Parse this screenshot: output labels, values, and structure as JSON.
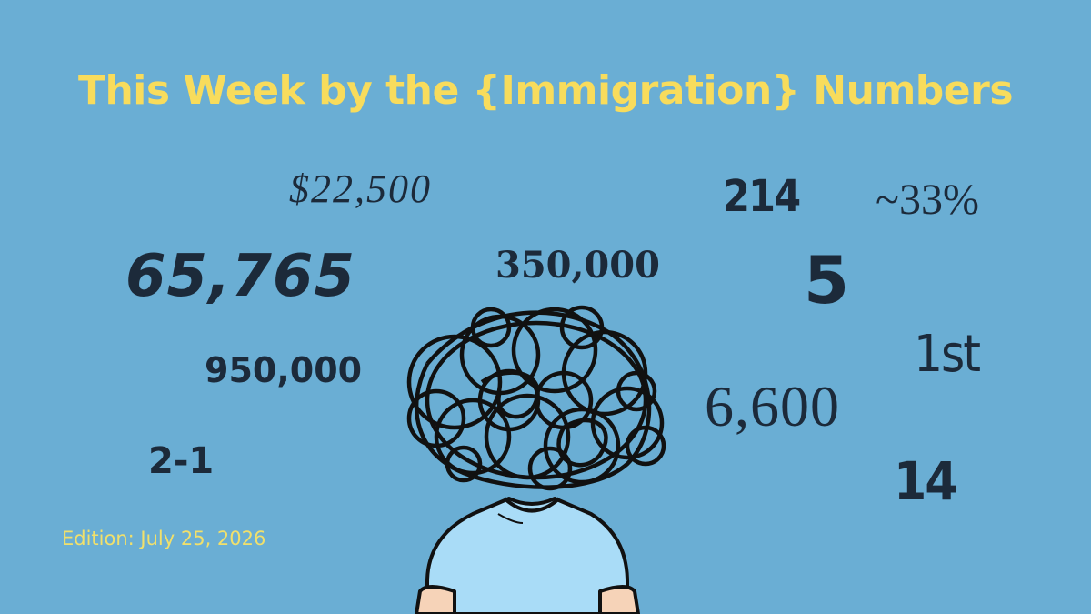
{
  "header": {
    "title": "This Week by the {Immigration} Numbers"
  },
  "numbers": [
    "$22,500",
    "214",
    "~33%",
    "65,765",
    "350,000",
    "5",
    "950,000",
    "1st",
    "6,600",
    "2-1",
    "14"
  ],
  "footer": {
    "edition": "Edition: July 25, 2026"
  }
}
